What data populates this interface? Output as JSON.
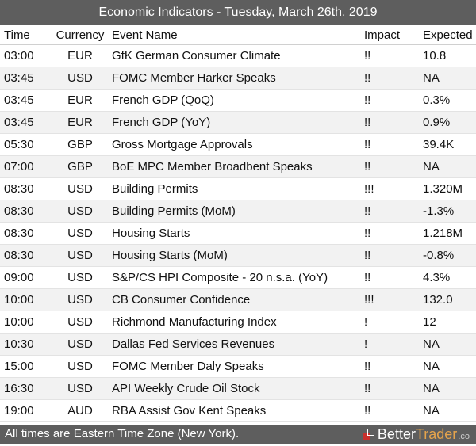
{
  "header": {
    "title": "Economic Indicators - Tuesday, March 26th, 2019"
  },
  "columns": {
    "time": "Time",
    "currency": "Currency",
    "event": "Event Name",
    "impact": "Impact",
    "expected": "Expected"
  },
  "rows": [
    {
      "time": "03:00",
      "currency": "EUR",
      "event": "GfK German Consumer Climate",
      "impact": "!!",
      "expected": "10.8"
    },
    {
      "time": "03:45",
      "currency": "USD",
      "event": "FOMC Member Harker Speaks",
      "impact": "!!",
      "expected": "NA"
    },
    {
      "time": "03:45",
      "currency": "EUR",
      "event": "French GDP (QoQ)",
      "impact": "!!",
      "expected": "0.3%"
    },
    {
      "time": "03:45",
      "currency": "EUR",
      "event": "French GDP (YoY)",
      "impact": "!!",
      "expected": "0.9%"
    },
    {
      "time": "05:30",
      "currency": "GBP",
      "event": "Gross Mortgage Approvals",
      "impact": "!!",
      "expected": "39.4K"
    },
    {
      "time": "07:00",
      "currency": "GBP",
      "event": "BoE MPC Member Broadbent Speaks",
      "impact": "!!",
      "expected": "NA"
    },
    {
      "time": "08:30",
      "currency": "USD",
      "event": "Building Permits",
      "impact": "!!!",
      "expected": "1.320M"
    },
    {
      "time": "08:30",
      "currency": "USD",
      "event": "Building Permits (MoM)",
      "impact": "!!",
      "expected": "-1.3%"
    },
    {
      "time": "08:30",
      "currency": "USD",
      "event": "Housing Starts",
      "impact": "!!",
      "expected": "1.218M"
    },
    {
      "time": "08:30",
      "currency": "USD",
      "event": "Housing Starts (MoM)",
      "impact": "!!",
      "expected": "-0.8%"
    },
    {
      "time": "09:00",
      "currency": "USD",
      "event": "S&P/CS HPI Composite - 20 n.s.a. (YoY)",
      "impact": "!!",
      "expected": "4.3%"
    },
    {
      "time": "10:00",
      "currency": "USD",
      "event": "CB Consumer Confidence",
      "impact": "!!!",
      "expected": "132.0"
    },
    {
      "time": "10:00",
      "currency": "USD",
      "event": "Richmond Manufacturing Index",
      "impact": "!",
      "expected": "12"
    },
    {
      "time": "10:30",
      "currency": "USD",
      "event": "Dallas Fed Services Revenues",
      "impact": "!",
      "expected": "NA"
    },
    {
      "time": "15:00",
      "currency": "USD",
      "event": "FOMC Member Daly Speaks",
      "impact": "!!",
      "expected": "NA"
    },
    {
      "time": "16:30",
      "currency": "USD",
      "event": "API Weekly Crude Oil Stock",
      "impact": "!!",
      "expected": "NA"
    },
    {
      "time": "19:00",
      "currency": "AUD",
      "event": "RBA Assist Gov Kent Speaks",
      "impact": "!!",
      "expected": "NA"
    }
  ],
  "footer": {
    "note": "All times are Eastern Time Zone (New York).",
    "brand_part1": "Better",
    "brand_part2": "Trader",
    "brand_suffix": ".co"
  },
  "colors": {
    "bar": "#5e5e5e",
    "stripe": "#f2f2f2",
    "brand_red": "#c9302c",
    "brand_orange": "#e6a44c"
  }
}
